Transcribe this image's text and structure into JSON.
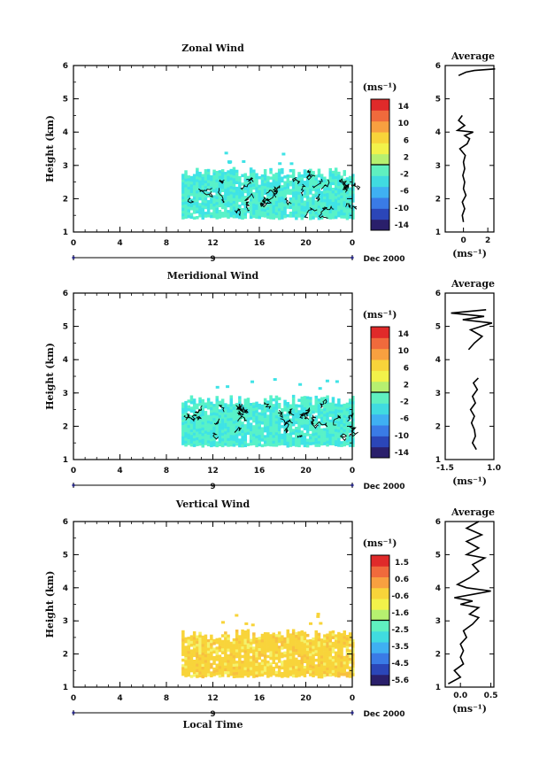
{
  "chart_data": [
    {
      "type": "heatmap",
      "title": "Zonal Wind",
      "ylabel": "Height (km)",
      "ylim": [
        1,
        6
      ],
      "yticks": [
        "1",
        "2",
        "3",
        "4",
        "5",
        "6"
      ],
      "xlim": [
        0,
        24
      ],
      "xticks": [
        "0",
        "4",
        "8",
        "12",
        "16",
        "20",
        "0"
      ],
      "date_labels": [
        "9",
        "Dec 2000"
      ],
      "colorbar": {
        "unit": "(ms⁻¹)",
        "labels": [
          "14",
          "10",
          "6",
          "2",
          "-2",
          "-6",
          "-10",
          "-14"
        ],
        "range": [
          -14,
          14
        ]
      },
      "data_window": {
        "x": [
          9.3,
          24
        ],
        "y": [
          1.45,
          2.85
        ]
      },
      "field_summary": "Data mostly between 9 and 24 LT, 1.5–2.8 km, values near 0 to -4 (cyan/aquamarine), black contours",
      "average": {
        "title": "Average",
        "xlabel": "(ms⁻¹)",
        "xlim": [
          -1.5,
          2.5
        ],
        "xticks": [
          "0",
          "2"
        ],
        "ylim": [
          1,
          6
        ],
        "yticks": [
          "1",
          "2",
          "3",
          "4",
          "5",
          "6"
        ],
        "profile": [
          [
            1.3,
            0.0
          ],
          [
            1.5,
            -0.1
          ],
          [
            1.7,
            0.1
          ],
          [
            1.9,
            -0.1
          ],
          [
            2.1,
            0.2
          ],
          [
            2.3,
            0.0
          ],
          [
            2.5,
            0.1
          ],
          [
            2.7,
            -0.05
          ],
          [
            2.9,
            0.1
          ],
          [
            3.1,
            0.0
          ],
          [
            3.3,
            0.15
          ],
          [
            3.5,
            -0.3
          ],
          [
            3.65,
            0.3
          ],
          [
            3.8,
            0.5
          ],
          [
            3.9,
            0.1
          ],
          [
            4.0,
            0.8
          ],
          [
            4.05,
            -0.5
          ],
          [
            4.2,
            0.1
          ],
          [
            4.35,
            -0.4
          ],
          [
            4.5,
            -0.1
          ]
        ],
        "profile_upper": [
          [
            5.7,
            -0.4
          ],
          [
            5.8,
            0.2
          ],
          [
            5.85,
            0.9
          ],
          [
            5.9,
            2.6
          ]
        ]
      }
    },
    {
      "type": "heatmap",
      "title": "Meridional Wind",
      "ylabel": "Height (km)",
      "ylim": [
        1,
        6
      ],
      "yticks": [
        "1",
        "2",
        "3",
        "4",
        "5",
        "6"
      ],
      "xlim": [
        0,
        24
      ],
      "xticks": [
        "0",
        "4",
        "8",
        "12",
        "16",
        "20",
        "0"
      ],
      "date_labels": [
        "9",
        "Dec 2000"
      ],
      "colorbar": {
        "unit": "(ms⁻¹)",
        "labels": [
          "14",
          "10",
          "6",
          "2",
          "-2",
          "-6",
          "-10",
          "-14"
        ],
        "range": [
          -14,
          14
        ]
      },
      "data_window": {
        "x": [
          9.3,
          24
        ],
        "y": [
          1.45,
          2.85
        ]
      },
      "field_summary": "Data mostly between 9 and 24 LT, 1.5–2.8 km, values near 0 to -4 (cyan/aquamarine), black contours",
      "average": {
        "title": "Average",
        "xlabel": "(ms⁻¹)",
        "xlim": [
          -1.5,
          1.0
        ],
        "xticks": [
          "-1.5",
          "1.0"
        ],
        "ylim": [
          1,
          6
        ],
        "yticks": [
          "1",
          "2",
          "3",
          "4",
          "5",
          "6"
        ],
        "profile": [
          [
            1.3,
            0.1
          ],
          [
            1.5,
            -0.1
          ],
          [
            1.7,
            0.05
          ],
          [
            1.9,
            0.0
          ],
          [
            2.1,
            -0.15
          ],
          [
            2.3,
            0.0
          ],
          [
            2.5,
            -0.2
          ],
          [
            2.7,
            0.05
          ],
          [
            2.9,
            -0.1
          ],
          [
            3.1,
            0.15
          ],
          [
            3.3,
            -0.05
          ],
          [
            3.45,
            0.2
          ]
        ],
        "profile_upper": [
          [
            4.3,
            -0.3
          ],
          [
            4.5,
            0.0
          ],
          [
            4.7,
            0.4
          ],
          [
            4.9,
            -0.2
          ],
          [
            5.1,
            0.9
          ],
          [
            5.2,
            -0.6
          ],
          [
            5.3,
            0.5
          ],
          [
            5.4,
            -1.2
          ],
          [
            5.5,
            0.6
          ]
        ]
      }
    },
    {
      "type": "heatmap",
      "title": "Vertical Wind",
      "ylabel": "Height (km)",
      "xlabel": "Local Time",
      "ylim": [
        1,
        6
      ],
      "yticks": [
        "1",
        "2",
        "3",
        "4",
        "5",
        "6"
      ],
      "xlim": [
        0,
        24
      ],
      "xticks": [
        "0",
        "4",
        "8",
        "12",
        "16",
        "20",
        "0"
      ],
      "date_labels": [
        "9",
        "Dec 2000"
      ],
      "colorbar": {
        "unit": "(ms⁻¹)",
        "labels": [
          "1.5",
          "0.6",
          "-0.6",
          "-1.6",
          "-2.5",
          "-3.5",
          "-4.5",
          "-5.6"
        ],
        "range": [
          -6,
          2
        ]
      },
      "data_window": {
        "x": [
          9.3,
          24
        ],
        "y": [
          1.35,
          2.65
        ]
      },
      "field_summary": "Data mostly between 9 and 24 LT, 1.3–2.6 km, values near 0.6 to 1.5 (yellow/orange)",
      "average": {
        "title": "Average",
        "xlabel": "(ms⁻¹)",
        "xlim": [
          -0.25,
          0.55
        ],
        "xticks": [
          "0.0",
          "0.5"
        ],
        "ylim": [
          1,
          6
        ],
        "yticks": [
          "1",
          "2",
          "3",
          "4",
          "5",
          "6"
        ],
        "profile": [
          [
            1.1,
            -0.2
          ],
          [
            1.3,
            0.0
          ],
          [
            1.5,
            -0.1
          ],
          [
            1.7,
            0.05
          ],
          [
            1.9,
            0.0
          ],
          [
            2.1,
            0.05
          ],
          [
            2.3,
            0.0
          ],
          [
            2.5,
            0.1
          ],
          [
            2.7,
            0.05
          ],
          [
            2.9,
            0.2
          ],
          [
            3.1,
            0.3
          ],
          [
            3.2,
            0.15
          ],
          [
            3.4,
            0.3
          ],
          [
            3.5,
            0.0
          ],
          [
            3.6,
            0.2
          ],
          [
            3.7,
            -0.1
          ],
          [
            3.8,
            0.2
          ],
          [
            3.9,
            0.5
          ],
          [
            4.0,
            0.1
          ],
          [
            4.1,
            -0.05
          ],
          [
            4.3,
            0.15
          ],
          [
            4.5,
            0.3
          ],
          [
            4.7,
            0.2
          ],
          [
            4.9,
            0.4
          ],
          [
            5.0,
            0.1
          ],
          [
            5.2,
            0.3
          ],
          [
            5.4,
            0.1
          ],
          [
            5.6,
            0.35
          ],
          [
            5.8,
            0.1
          ],
          [
            6.0,
            0.3
          ]
        ]
      }
    }
  ],
  "colors": {
    "scale_14": [
      "#2a1f6b",
      "#2b46b8",
      "#3a7be6",
      "#3fb0f2",
      "#40dbe0",
      "#5ff0c0",
      "#b6f070",
      "#f2f24a",
      "#f8d43a",
      "#f8a040",
      "#f06a3c",
      "#e02a2a"
    ],
    "field_neg": "#58f2c8",
    "field_cyan": "#3fe3e6",
    "field_yellow": "#f8d43a",
    "field_light": "#f4f26a"
  }
}
